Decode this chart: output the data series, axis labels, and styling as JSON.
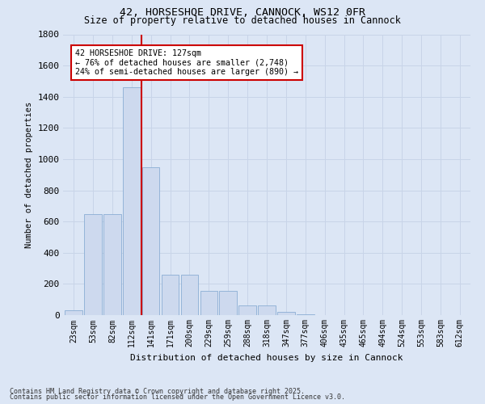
{
  "title1": "42, HORSESHOE DRIVE, CANNOCK, WS12 0FR",
  "title2": "Size of property relative to detached houses in Cannock",
  "xlabel": "Distribution of detached houses by size in Cannock",
  "ylabel": "Number of detached properties",
  "bin_labels": [
    "23sqm",
    "53sqm",
    "82sqm",
    "112sqm",
    "141sqm",
    "171sqm",
    "200sqm",
    "229sqm",
    "259sqm",
    "288sqm",
    "318sqm",
    "347sqm",
    "377sqm",
    "406sqm",
    "435sqm",
    "465sqm",
    "494sqm",
    "524sqm",
    "553sqm",
    "583sqm",
    "612sqm"
  ],
  "bar_values": [
    30,
    645,
    645,
    1460,
    950,
    260,
    260,
    155,
    155,
    60,
    60,
    20,
    5,
    2,
    1,
    0,
    0,
    0,
    0,
    0,
    0
  ],
  "bar_color": "#cdd9ee",
  "bar_edge_color": "#8aadd4",
  "grid_color": "#c8d4e8",
  "background_color": "#dce6f5",
  "vline_x": 3.5,
  "vline_color": "#cc0000",
  "annotation_text": "42 HORSESHOE DRIVE: 127sqm\n← 76% of detached houses are smaller (2,748)\n24% of semi-detached houses are larger (890) →",
  "annotation_box_color": "#ffffff",
  "annotation_box_edge": "#cc0000",
  "ylim": [
    0,
    1800
  ],
  "yticks": [
    0,
    200,
    400,
    600,
    800,
    1000,
    1200,
    1400,
    1600,
    1800
  ],
  "footnote1": "Contains HM Land Registry data © Crown copyright and database right 2025.",
  "footnote2": "Contains public sector information licensed under the Open Government Licence v3.0."
}
